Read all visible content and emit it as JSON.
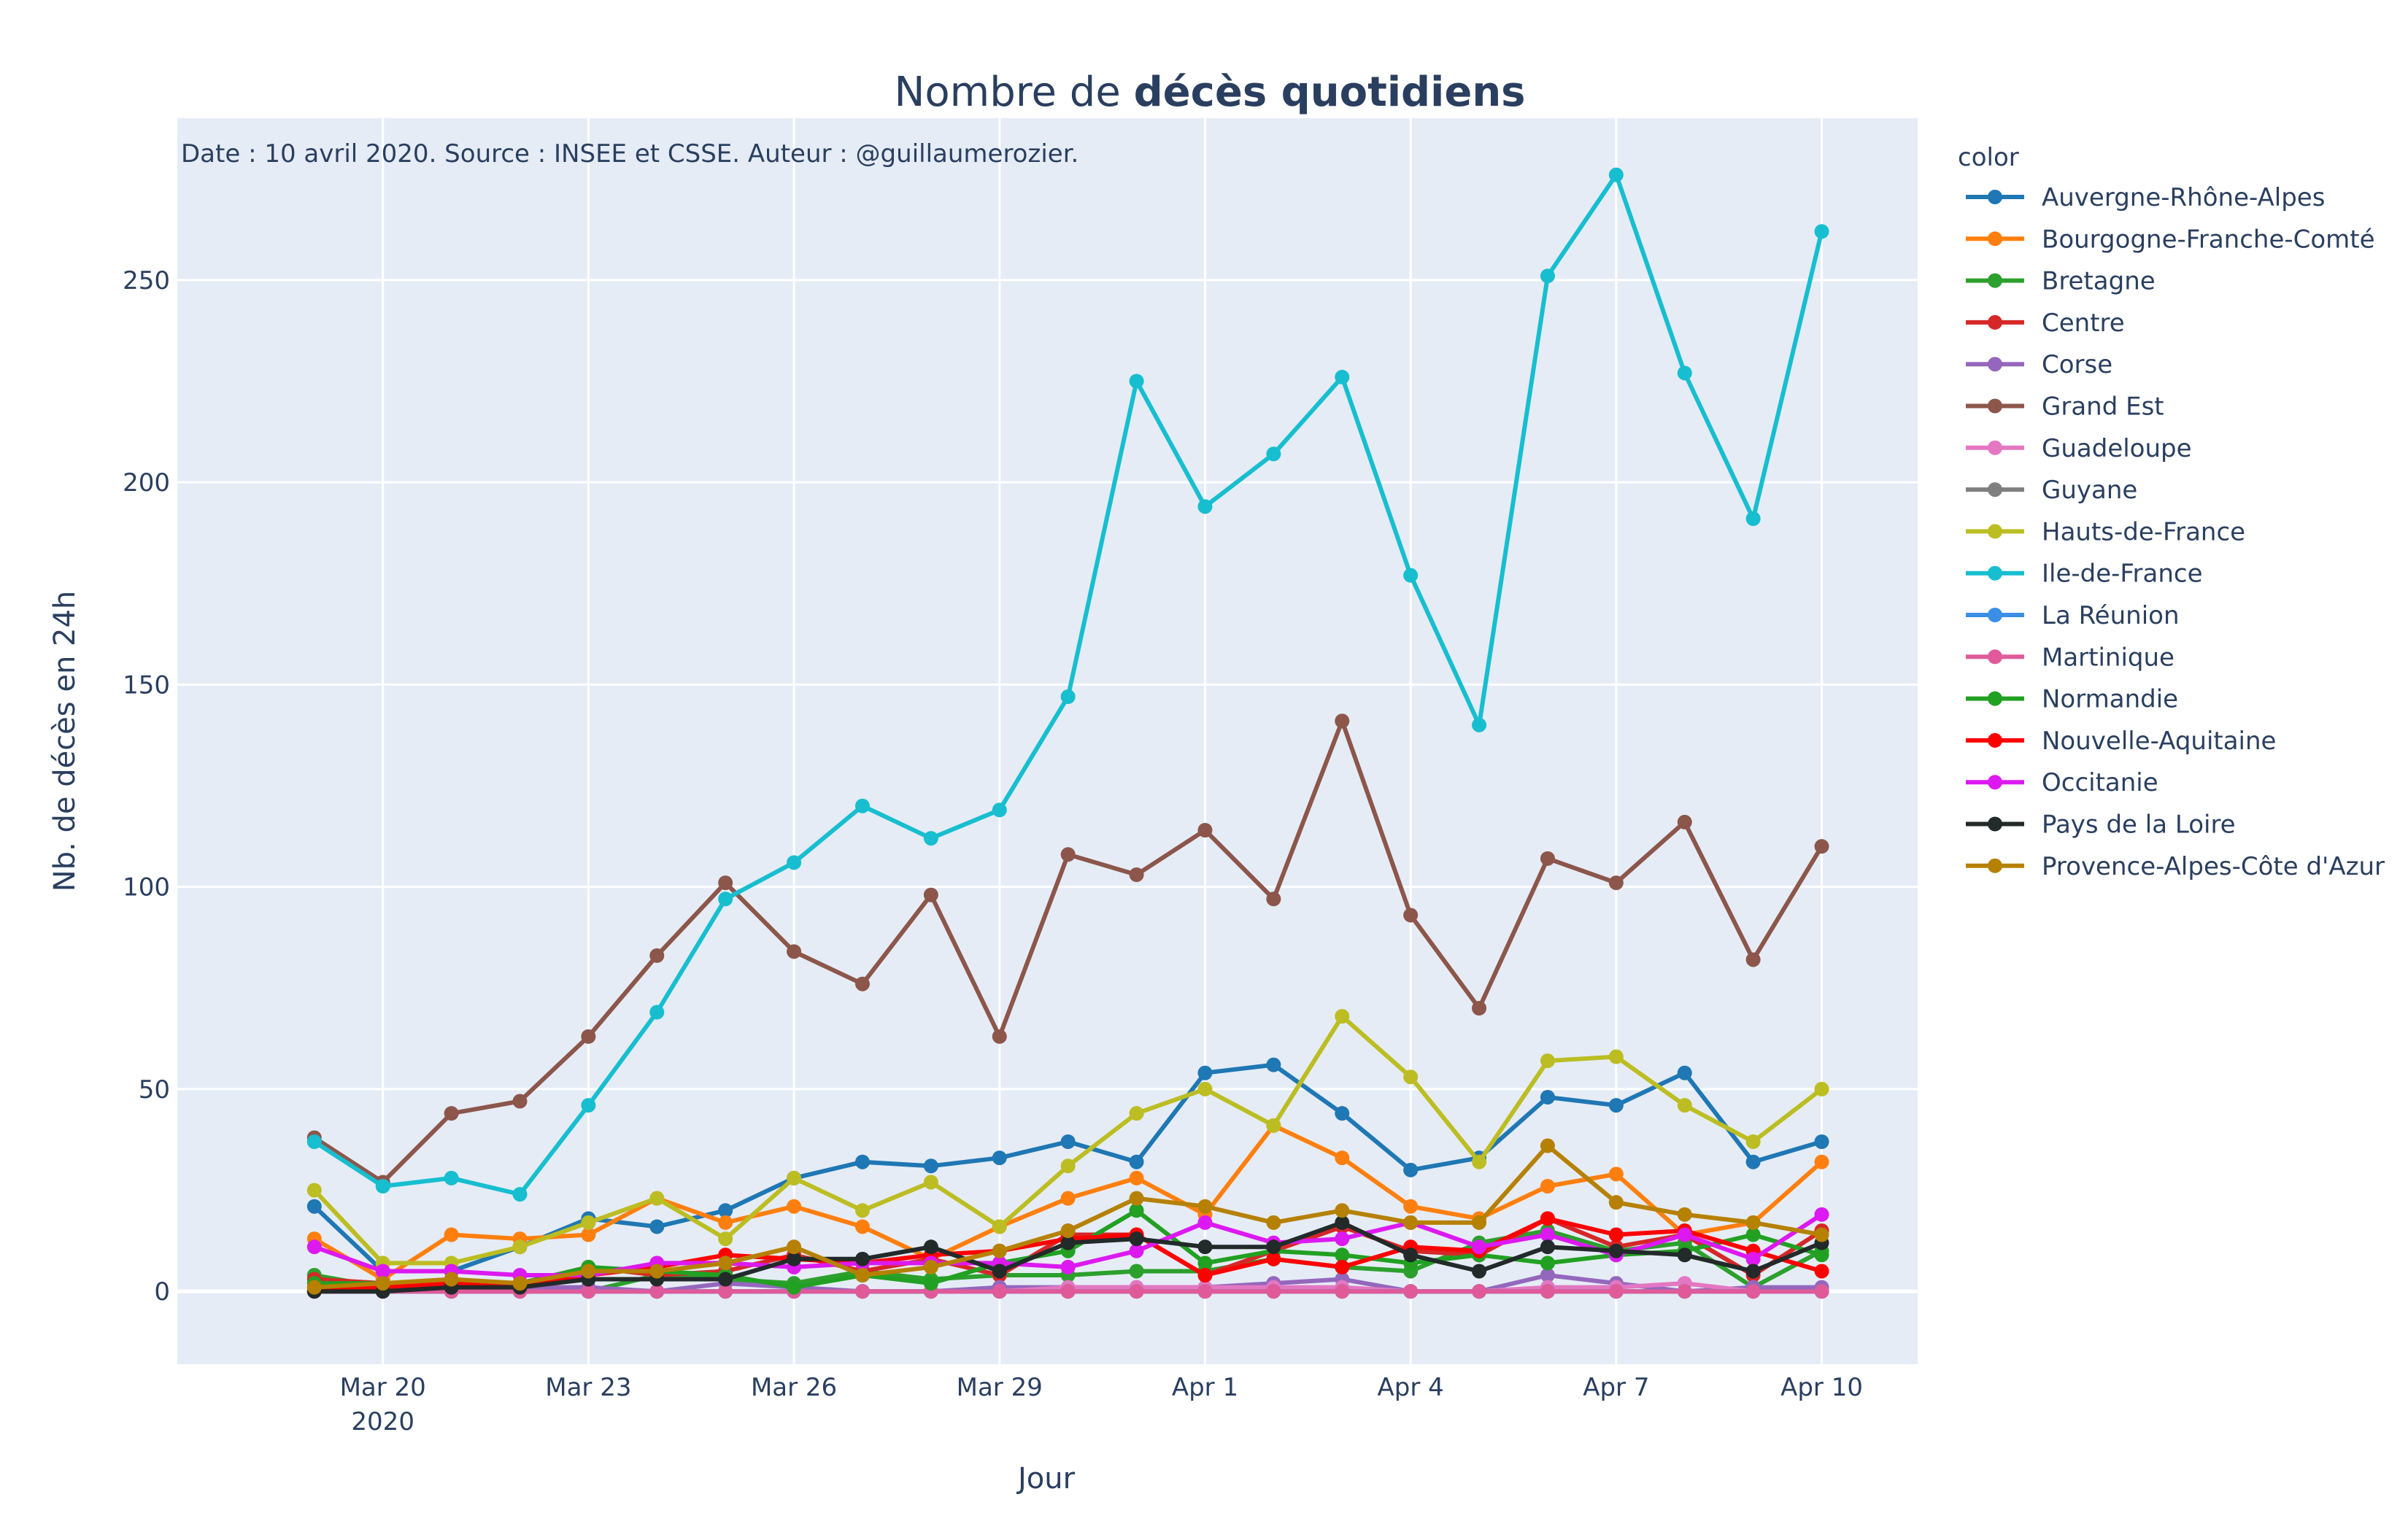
{
  "chart_data": {
    "type": "line",
    "title_prefix": "Nombre de ",
    "title_bold": "décès quotidiens",
    "annotation": "Date : 10 avril 2020. Source : INSEE et CSSE. Auteur : @guillaumerozier.",
    "xlabel": "Jour",
    "ylabel": "Nb. de décès en 24h",
    "legend_title": "color",
    "legend_position": "right",
    "grid": true,
    "x": [
      "2020-03-19",
      "2020-03-20",
      "2020-03-21",
      "2020-03-22",
      "2020-03-23",
      "2020-03-24",
      "2020-03-25",
      "2020-03-26",
      "2020-03-27",
      "2020-03-28",
      "2020-03-29",
      "2020-03-30",
      "2020-03-31",
      "2020-04-01",
      "2020-04-02",
      "2020-04-03",
      "2020-04-04",
      "2020-04-05",
      "2020-04-06",
      "2020-04-07",
      "2020-04-08",
      "2020-04-09",
      "2020-04-10"
    ],
    "x_ticks": [
      {
        "index": 1,
        "label": "Mar 20",
        "sublabel": "2020"
      },
      {
        "index": 4,
        "label": "Mar 23"
      },
      {
        "index": 7,
        "label": "Mar 26"
      },
      {
        "index": 10,
        "label": "Mar 29"
      },
      {
        "index": 13,
        "label": "Apr 1"
      },
      {
        "index": 16,
        "label": "Apr 4"
      },
      {
        "index": 19,
        "label": "Apr 7"
      },
      {
        "index": 22,
        "label": "Apr 10"
      }
    ],
    "xlim": [
      "2020-03-17",
      "2020-04-11.4"
    ],
    "ylim": [
      -18,
      290
    ],
    "y_ticks": [
      0,
      50,
      100,
      150,
      200,
      250
    ],
    "series": [
      {
        "name": "Auvergne-Rhône-Alpes",
        "color": "#1f77b4",
        "values": [
          21,
          5,
          5,
          11,
          18,
          16,
          20,
          28,
          32,
          31,
          33,
          37,
          32,
          54,
          56,
          44,
          30,
          33,
          48,
          46,
          54,
          32,
          37
        ]
      },
      {
        "name": "Bourgogne-Franche-Comté",
        "color": "#ff7f0e",
        "values": [
          13,
          3,
          14,
          13,
          14,
          23,
          17,
          21,
          16,
          8,
          16,
          23,
          28,
          19,
          41,
          33,
          21,
          18,
          26,
          29,
          14,
          17,
          32
        ]
      },
      {
        "name": "Bretagne",
        "color": "#2ca02c",
        "values": [
          4,
          1,
          0,
          2,
          0,
          4,
          3,
          2,
          5,
          3,
          4,
          4,
          5,
          5,
          8,
          6,
          5,
          12,
          15,
          10,
          12,
          1,
          10
        ]
      },
      {
        "name": "Centre",
        "color": "#d62728",
        "values": [
          3,
          2,
          1,
          2,
          6,
          4,
          5,
          9,
          5,
          8,
          4,
          14,
          14,
          4,
          10,
          16,
          10,
          9,
          18,
          11,
          14,
          4,
          15
        ]
      },
      {
        "name": "Corse",
        "color": "#9467bd",
        "values": [
          0,
          0,
          1,
          1,
          1,
          0,
          2,
          1,
          0,
          0,
          1,
          1,
          1,
          1,
          2,
          3,
          0,
          0,
          4,
          2,
          0,
          1,
          1
        ]
      },
      {
        "name": "Grand Est",
        "color": "#8c564b",
        "values": [
          38,
          27,
          44,
          47,
          63,
          83,
          101,
          84,
          76,
          98,
          63,
          108,
          103,
          114,
          97,
          141,
          93,
          70,
          107,
          101,
          116,
          82,
          110
        ]
      },
      {
        "name": "Guadeloupe",
        "color": "#e377c2",
        "values": [
          0,
          0,
          0,
          0,
          0,
          0,
          0,
          0,
          0,
          0,
          0,
          1,
          1,
          1,
          1,
          1,
          0,
          0,
          1,
          1,
          2,
          0,
          0
        ]
      },
      {
        "name": "Guyane",
        "color": "#7f7f7f",
        "values": [
          0,
          0,
          0,
          0,
          0,
          0,
          0,
          0,
          0,
          0,
          0,
          0,
          0,
          0,
          0,
          0,
          0,
          0,
          0,
          0,
          0,
          0,
          0
        ]
      },
      {
        "name": "Hauts-de-France",
        "color": "#bcbd22",
        "values": [
          25,
          7,
          7,
          11,
          17,
          23,
          13,
          28,
          20,
          27,
          16,
          31,
          44,
          50,
          41,
          68,
          53,
          32,
          57,
          58,
          46,
          37,
          50
        ]
      },
      {
        "name": "Ile-de-France",
        "color": "#17becf",
        "values": [
          37,
          26,
          28,
          24,
          46,
          69,
          97,
          106,
          120,
          112,
          119,
          147,
          225,
          194,
          207,
          226,
          177,
          140,
          251,
          276,
          227,
          191,
          262
        ]
      },
      {
        "name": "La Réunion",
        "color": "#3a8ee6",
        "values": [
          0,
          0,
          0,
          0,
          0,
          0,
          0,
          0,
          0,
          0,
          0,
          0,
          0,
          0,
          0,
          0,
          0,
          0,
          0,
          0,
          0,
          0,
          0
        ]
      },
      {
        "name": "Martinique",
        "color": "#e05a9a",
        "values": [
          0,
          0,
          0,
          0,
          0,
          0,
          0,
          0,
          0,
          0,
          0,
          0,
          0,
          0,
          0,
          0,
          0,
          0,
          0,
          0,
          0,
          0,
          0
        ]
      },
      {
        "name": "Normandie",
        "color": "#22a022",
        "values": [
          2,
          2,
          2,
          2,
          6,
          5,
          4,
          1,
          4,
          2,
          7,
          10,
          20,
          7,
          10,
          9,
          7,
          9,
          7,
          9,
          10,
          14,
          9
        ]
      },
      {
        "name": "Nouvelle-Aquitaine",
        "color": "#ff0000",
        "values": [
          1,
          1,
          2,
          2,
          4,
          6,
          9,
          8,
          7,
          9,
          10,
          13,
          14,
          4,
          8,
          6,
          11,
          10,
          18,
          14,
          15,
          10,
          5
        ]
      },
      {
        "name": "Occitanie",
        "color": "#dc19f0",
        "values": [
          11,
          5,
          5,
          4,
          4,
          7,
          7,
          6,
          7,
          7,
          7,
          6,
          10,
          17,
          12,
          13,
          17,
          11,
          14,
          9,
          14,
          8,
          19
        ]
      },
      {
        "name": "Pays de la Loire",
        "color": "#222a2a",
        "values": [
          0,
          0,
          1,
          1,
          3,
          3,
          3,
          8,
          8,
          11,
          5,
          12,
          13,
          11,
          11,
          17,
          9,
          5,
          11,
          10,
          9,
          5,
          12
        ]
      },
      {
        "name": "Provence-Alpes-Côte d'Azur",
        "color": "#b68100",
        "values": [
          1,
          2,
          3,
          2,
          5,
          5,
          7,
          11,
          4,
          6,
          10,
          15,
          23,
          21,
          17,
          20,
          17,
          17,
          36,
          22,
          19,
          17,
          14
        ]
      }
    ]
  }
}
